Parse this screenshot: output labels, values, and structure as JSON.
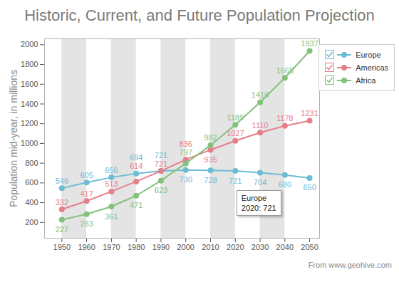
{
  "chart_data": {
    "type": "line",
    "title": "Historic, Current, and Future Population Projection",
    "y_label": "Population mid-year, in millions",
    "caption": "From www.geohive.com",
    "x": [
      1950,
      1960,
      1970,
      1980,
      1990,
      2000,
      2010,
      2020,
      2030,
      2040,
      2050
    ],
    "series": [
      {
        "name": "Europe",
        "color": "#6cbcd6",
        "values": [
          546,
          605,
          656,
          694,
          721,
          730,
          728,
          721,
          704,
          680,
          650
        ]
      },
      {
        "name": "Americas",
        "color": "#e57f8c",
        "values": [
          332,
          417,
          513,
          614,
          721,
          836,
          935,
          1027,
          1110,
          1178,
          1231
        ]
      },
      {
        "name": "Africa",
        "color": "#82c27c",
        "values": [
          227,
          283,
          361,
          471,
          623,
          797,
          982,
          1189,
          1416,
          1665,
          1937
        ]
      }
    ],
    "xlim": [
      1943,
      2054
    ],
    "xticks": [
      1950,
      1960,
      1970,
      1980,
      1990,
      2000,
      2010,
      2020,
      2030,
      2040,
      2050
    ],
    "ylim": [
      40,
      2060
    ],
    "yticks": [
      200,
      400,
      600,
      800,
      1000,
      1200,
      1400,
      1600,
      1800,
      2000
    ],
    "grid": false,
    "legend": "top-right",
    "marker": "circle",
    "data_labels": true,
    "annotation": {
      "series": "Europe",
      "x": 2020,
      "text": [
        "Europe",
        "2020: 721"
      ]
    }
  }
}
